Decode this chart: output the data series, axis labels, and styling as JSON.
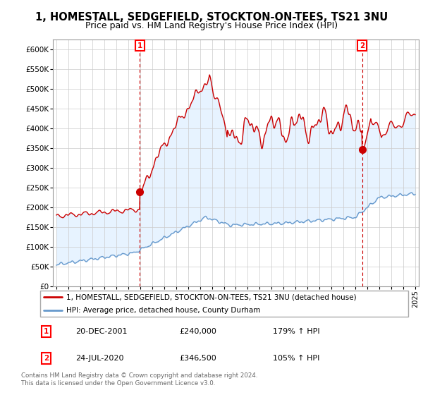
{
  "title": "1, HOMESTALL, SEDGEFIELD, STOCKTON-ON-TEES, TS21 3NU",
  "subtitle": "Price paid vs. HM Land Registry's House Price Index (HPI)",
  "title_fontsize": 10.5,
  "subtitle_fontsize": 9,
  "ylabel_ticks": [
    "£0",
    "£50K",
    "£100K",
    "£150K",
    "£200K",
    "£250K",
    "£300K",
    "£350K",
    "£400K",
    "£450K",
    "£500K",
    "£550K",
    "£600K"
  ],
  "ytick_values": [
    0,
    50000,
    100000,
    150000,
    200000,
    250000,
    300000,
    350000,
    400000,
    450000,
    500000,
    550000,
    600000
  ],
  "ylim": [
    0,
    625000
  ],
  "xlim_start": 1994.7,
  "xlim_end": 2025.3,
  "xtick_years": [
    1995,
    1996,
    1997,
    1998,
    1999,
    2000,
    2001,
    2002,
    2003,
    2004,
    2005,
    2006,
    2007,
    2008,
    2009,
    2010,
    2011,
    2012,
    2013,
    2014,
    2015,
    2016,
    2017,
    2018,
    2019,
    2020,
    2021,
    2022,
    2023,
    2024,
    2025
  ],
  "red_line_color": "#cc0000",
  "blue_line_color": "#6699cc",
  "fill_color": "#ddeeff",
  "point1_x": 2001.97,
  "point1_y": 240000,
  "point2_x": 2020.56,
  "point2_y": 346500,
  "legend_red": "1, HOMESTALL, SEDGEFIELD, STOCKTON-ON-TEES, TS21 3NU (detached house)",
  "legend_blue": "HPI: Average price, detached house, County Durham",
  "annotation1_label": "1",
  "annotation1_date": "20-DEC-2001",
  "annotation1_price": "£240,000",
  "annotation1_hpi": "179% ↑ HPI",
  "annotation2_label": "2",
  "annotation2_date": "24-JUL-2020",
  "annotation2_price": "£346,500",
  "annotation2_hpi": "105% ↑ HPI",
  "footer1": "Contains HM Land Registry data © Crown copyright and database right 2024.",
  "footer2": "This data is licensed under the Open Government Licence v3.0.",
  "bg_color": "#ffffff",
  "plot_bg_color": "#ffffff",
  "grid_color": "#cccccc"
}
